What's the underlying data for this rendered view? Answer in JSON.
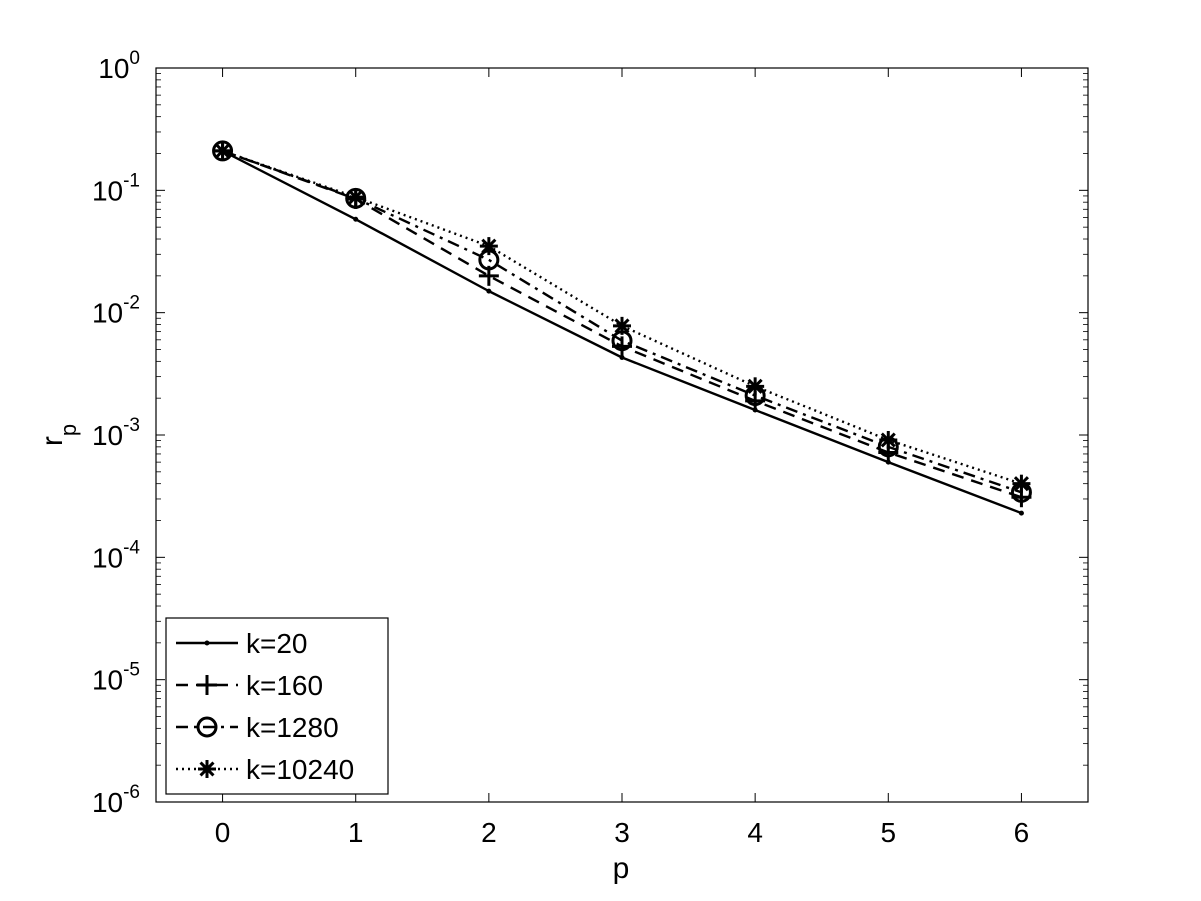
{
  "chart_data": {
    "type": "line",
    "xlabel": "p",
    "ylabel": "r",
    "ylabel_subscript": "p",
    "xlim": [
      -0.5,
      6.5
    ],
    "ylim": [
      1e-06,
      1
    ],
    "yscale": "log",
    "grid": false,
    "legend_position": "bottom-left",
    "x_ticks": [
      "0",
      "1",
      "2",
      "3",
      "4",
      "5",
      "6"
    ],
    "y_ticks": [
      {
        "value": 1e-06,
        "base": "10",
        "exp": "-6"
      },
      {
        "value": 1e-05,
        "base": "10",
        "exp": "-5"
      },
      {
        "value": 0.0001,
        "base": "10",
        "exp": "-4"
      },
      {
        "value": 0.001,
        "base": "10",
        "exp": "-3"
      },
      {
        "value": 0.01,
        "base": "10",
        "exp": "-2"
      },
      {
        "value": 0.1,
        "base": "10",
        "exp": "-1"
      },
      {
        "value": 1,
        "base": "10",
        "exp": "0"
      }
    ],
    "x": [
      0,
      1,
      2,
      3,
      4,
      5,
      6
    ],
    "series": [
      {
        "name": "k=20",
        "line_style": "solid",
        "marker": "dot",
        "values": [
          0.21,
          0.058,
          0.015,
          0.0043,
          0.0016,
          0.0006,
          0.00023
        ]
      },
      {
        "name": "k=160",
        "line_style": "dashed",
        "marker": "plus",
        "values": [
          0.21,
          0.085,
          0.02,
          0.0053,
          0.0019,
          0.00072,
          0.00031
        ]
      },
      {
        "name": "k=1280",
        "line_style": "dashdot",
        "marker": "circle",
        "values": [
          0.21,
          0.086,
          0.027,
          0.0059,
          0.0021,
          0.0008,
          0.00034
        ]
      },
      {
        "name": "k=10240",
        "line_style": "dotted",
        "marker": "star",
        "values": [
          0.21,
          0.088,
          0.035,
          0.0078,
          0.0025,
          0.00091,
          0.0004
        ]
      }
    ]
  }
}
